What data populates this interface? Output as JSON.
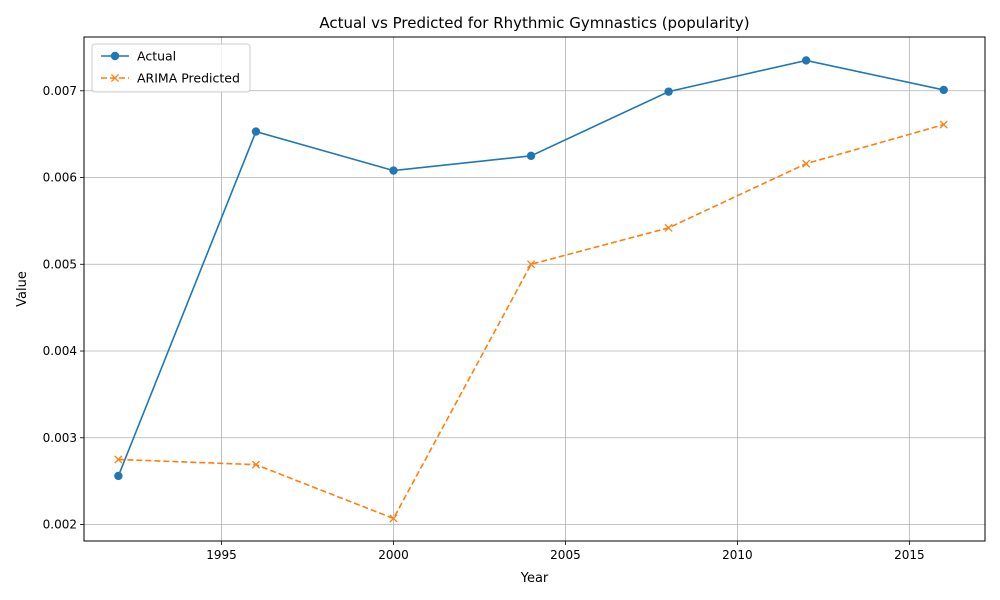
{
  "chart_data": {
    "type": "line",
    "title": "Actual vs Predicted for Rhythmic Gymnastics (popularity)",
    "xlabel": "Year",
    "ylabel": "Value",
    "xlim": [
      1991,
      2017.2
    ],
    "ylim": [
      0.00181,
      0.00762
    ],
    "xticks": [
      1995,
      2000,
      2005,
      2010,
      2015
    ],
    "yticks": [
      0.002,
      0.003,
      0.004,
      0.005,
      0.006,
      0.007
    ],
    "ytick_labels": [
      "0.002",
      "0.003",
      "0.004",
      "0.005",
      "0.006",
      "0.007"
    ],
    "grid": true,
    "legend_position": "top-left",
    "x": [
      1992,
      1996,
      2000,
      2004,
      2008,
      2012,
      2016
    ],
    "series": [
      {
        "name": "Actual",
        "color": "#1f77b4",
        "linestyle": "solid",
        "marker": "circle",
        "values": [
          0.00256,
          0.00653,
          0.00608,
          0.00625,
          0.00699,
          0.00735,
          0.00701
        ]
      },
      {
        "name": "ARIMA Predicted",
        "color": "#ff7f0e",
        "linestyle": "dashed",
        "marker": "x",
        "values": [
          0.00275,
          0.00269,
          0.00207,
          0.005,
          0.00542,
          0.00616,
          0.00661
        ]
      }
    ]
  }
}
